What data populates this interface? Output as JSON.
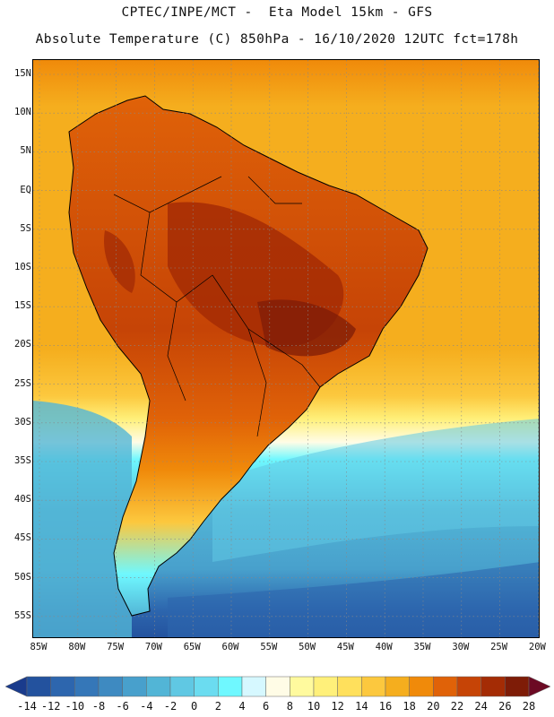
{
  "header": {
    "line1": "CPTEC/INPE/MCT -  Eta Model 15km - GFS",
    "line2": "Absolute Temperature (C) 850hPa - 16/10/2020 12UTC fct=178h"
  },
  "axes": {
    "lat_labels": [
      "15N",
      "10N",
      "5N",
      "EQ",
      "5S",
      "10S",
      "15S",
      "20S",
      "25S",
      "30S",
      "35S",
      "40S",
      "45S",
      "50S",
      "55S"
    ],
    "lon_labels": [
      "85W",
      "80W",
      "75W",
      "70W",
      "65W",
      "60W",
      "55W",
      "50W",
      "45W",
      "40W",
      "35W",
      "30W",
      "25W",
      "20W"
    ]
  },
  "colorbar": {
    "labels": [
      "-14",
      "-12",
      "-10",
      "-8",
      "-6",
      "-4",
      "-2",
      "0",
      "2",
      "4",
      "6",
      "8",
      "10",
      "12",
      "14",
      "16",
      "18",
      "20",
      "22",
      "24",
      "26",
      "28"
    ],
    "colors": [
      "#1a3b8c",
      "#23529e",
      "#2d66ae",
      "#3577b8",
      "#3e8ac1",
      "#48a0cc",
      "#52b5d6",
      "#60c8e3",
      "#6bdcf0",
      "#6ff8ff",
      "#d6f8ff",
      "#fffce6",
      "#fffa9e",
      "#fff07a",
      "#ffe05c",
      "#fcc83e",
      "#f5ae1e",
      "#f08a0a",
      "#e06208",
      "#c64406",
      "#a42c05",
      "#7e1c07",
      "#6c0a24"
    ]
  },
  "map_colors": {
    "ocean_warm": "#f5ae1e",
    "land_hot": "#e06208",
    "land_hotter": "#c64406",
    "land_hottest": "#a42c05",
    "coastline": "#000000"
  }
}
